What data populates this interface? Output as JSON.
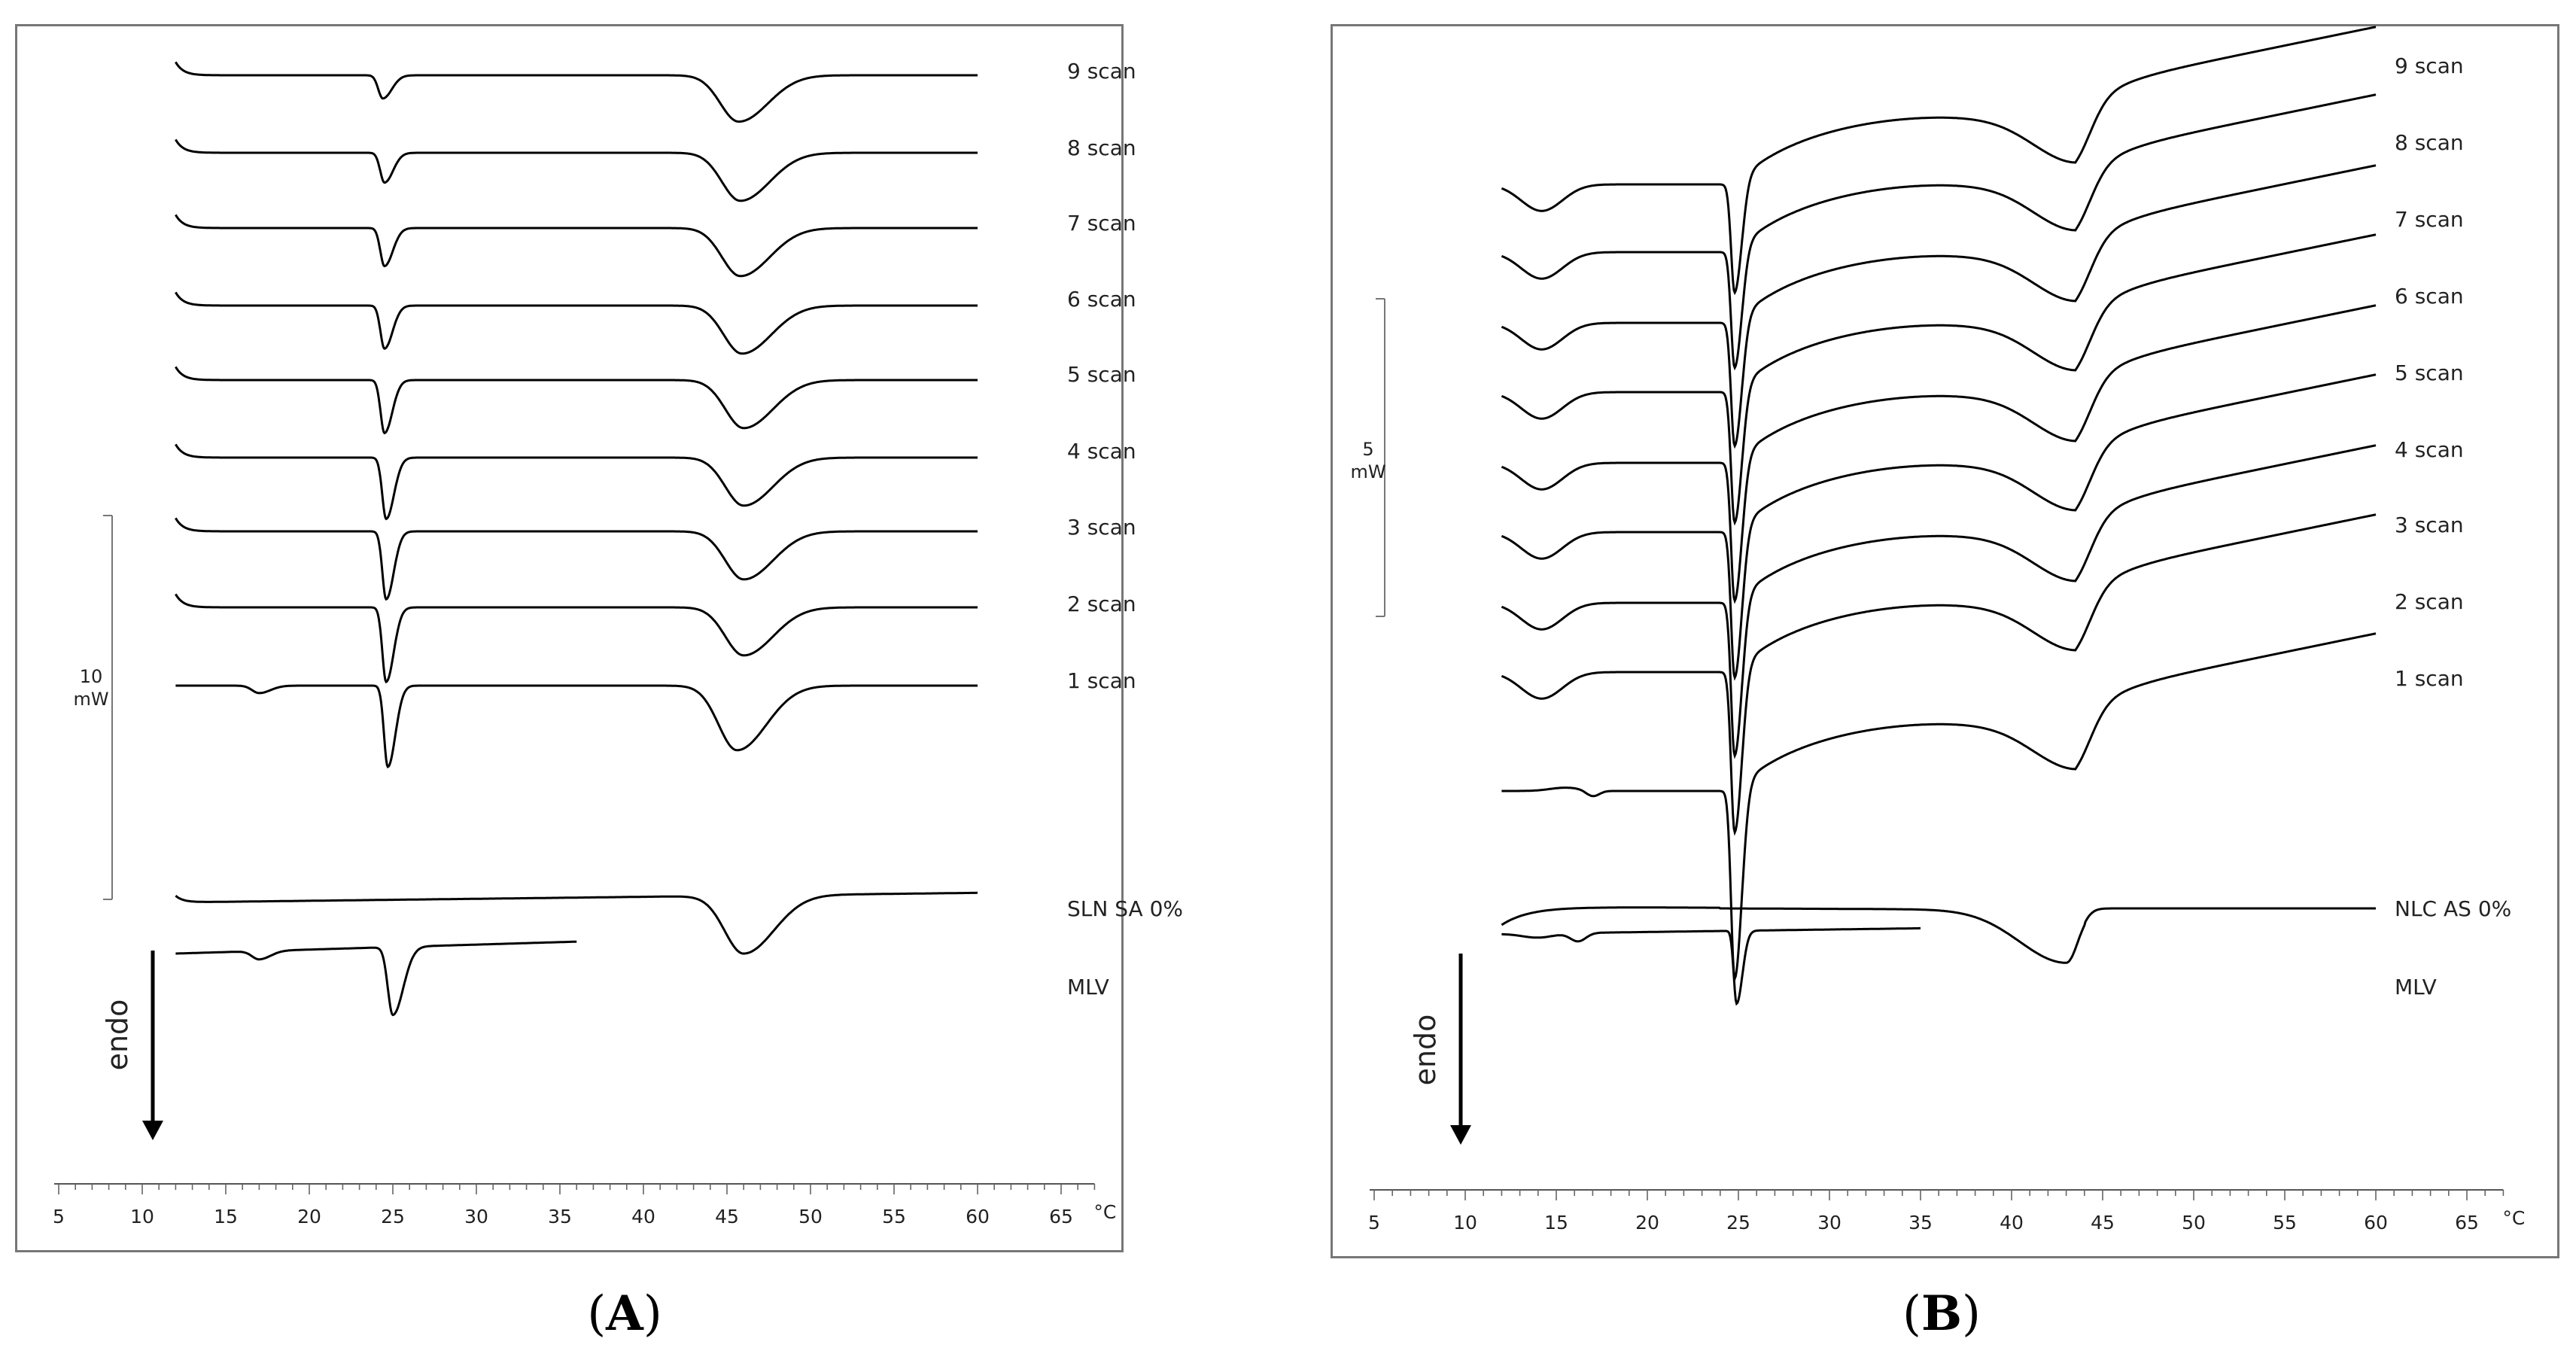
{
  "figure": {
    "panel_a_caption": {
      "open": "(",
      "letter": "A",
      "close": ")"
    },
    "panel_b_caption": {
      "open": "(",
      "letter": "B",
      "close": ")"
    }
  },
  "chart_data": [
    {
      "type": "line",
      "panel": "A",
      "x_axis": {
        "min": 5,
        "max": 67,
        "ticks": [
          5,
          10,
          15,
          20,
          25,
          30,
          35,
          40,
          45,
          50,
          55,
          60,
          65
        ],
        "tick_labels": [
          "5",
          "10",
          "15",
          "20",
          "25",
          "30",
          "35",
          "40",
          "45",
          "50",
          "55",
          "60",
          "65"
        ],
        "unit_label": "°C",
        "minor_step": 1
      },
      "y_axis_visible": false,
      "scale_bar": {
        "value_label": "10",
        "unit_label": "mW"
      },
      "direction_arrow_label": "endo",
      "series": [
        {
          "name": "9 scan",
          "x_start": 12,
          "x_end": 60,
          "baseline": 0,
          "dips": [
            {
              "x": 24.4,
              "depth": 1.4,
              "w": 0.38,
              "tail": 1.0
            },
            {
              "x": 45.7,
              "depth": 2.8,
              "w": 1.55,
              "tail": 0.6
            }
          ],
          "start_hook": 0.8
        },
        {
          "name": "8 scan",
          "x_start": 12,
          "x_end": 60,
          "baseline": 0,
          "dips": [
            {
              "x": 24.5,
              "depth": 1.8,
              "w": 0.36,
              "tail": 1.0
            },
            {
              "x": 45.8,
              "depth": 2.9,
              "w": 1.55,
              "tail": 0.6
            }
          ],
          "start_hook": 0.8
        },
        {
          "name": "7 scan",
          "x_start": 12,
          "x_end": 60,
          "baseline": 0,
          "dips": [
            {
              "x": 24.5,
              "depth": 2.3,
              "w": 0.35,
              "tail": 1.0
            },
            {
              "x": 45.8,
              "depth": 2.9,
              "w": 1.55,
              "tail": 0.6
            }
          ],
          "start_hook": 0.8
        },
        {
          "name": "6 scan",
          "x_start": 12,
          "x_end": 60,
          "baseline": 0,
          "dips": [
            {
              "x": 24.5,
              "depth": 2.6,
              "w": 0.34,
              "tail": 1.0
            },
            {
              "x": 45.9,
              "depth": 2.9,
              "w": 1.55,
              "tail": 0.6
            }
          ],
          "start_hook": 0.8
        },
        {
          "name": "5 scan",
          "x_start": 12,
          "x_end": 60,
          "baseline": 0,
          "dips": [
            {
              "x": 24.5,
              "depth": 3.2,
              "w": 0.33,
              "tail": 1.0
            },
            {
              "x": 46.0,
              "depth": 2.9,
              "w": 1.55,
              "tail": 0.6
            }
          ],
          "start_hook": 0.8
        },
        {
          "name": "4 scan",
          "x_start": 12,
          "x_end": 60,
          "baseline": 0,
          "dips": [
            {
              "x": 24.6,
              "depth": 3.7,
              "w": 0.33,
              "tail": 1.0
            },
            {
              "x": 46.0,
              "depth": 2.9,
              "w": 1.55,
              "tail": 0.6
            }
          ],
          "start_hook": 0.8
        },
        {
          "name": "3 scan",
          "x_start": 12,
          "x_end": 60,
          "baseline": 0,
          "dips": [
            {
              "x": 24.6,
              "depth": 4.1,
              "w": 0.32,
              "tail": 1.0
            },
            {
              "x": 46.0,
              "depth": 2.9,
              "w": 1.55,
              "tail": 0.6
            }
          ],
          "start_hook": 0.8
        },
        {
          "name": "2 scan",
          "x_start": 12,
          "x_end": 60,
          "baseline": 0,
          "dips": [
            {
              "x": 24.6,
              "depth": 4.5,
              "w": 0.32,
              "tail": 1.0
            },
            {
              "x": 46.0,
              "depth": 2.9,
              "w": 1.55,
              "tail": 0.6
            }
          ],
          "start_hook": 0.8
        },
        {
          "name": "1 scan",
          "x_start": 12,
          "x_end": 60,
          "baseline": 0,
          "dips": [
            {
              "x": 17.0,
              "depth": 0.45,
              "w": 0.6,
              "tail": 0.6
            },
            {
              "x": 24.7,
              "depth": 4.9,
              "w": 0.32,
              "tail": 1.0
            },
            {
              "x": 45.6,
              "depth": 3.9,
              "w": 1.55,
              "tail": 0.6
            }
          ],
          "start_hook": 0
        },
        {
          "name": "SLN SA 0%",
          "x_start": 12,
          "x_end": 60,
          "baseline": 0,
          "slope": -0.012,
          "dips": [
            {
              "x": 46.0,
              "depth": 3.5,
              "w": 1.6,
              "tail": 0.6
            }
          ],
          "start_hook": 0.4
        },
        {
          "name": "MLV",
          "x_start": 12,
          "x_end": 36,
          "baseline": 0,
          "slope": -0.03,
          "dips": [
            {
              "x": 17.0,
              "depth": 0.5,
              "w": 0.6,
              "tail": 0.6
            },
            {
              "x": 25.0,
              "depth": 4.1,
              "w": 0.42,
              "tail": 1.1
            }
          ],
          "start_hook": 0
        }
      ]
    },
    {
      "type": "line",
      "panel": "B",
      "x_axis": {
        "min": 5,
        "max": 67,
        "ticks": [
          5,
          10,
          15,
          20,
          25,
          30,
          35,
          40,
          45,
          50,
          55,
          60,
          65
        ],
        "tick_labels": [
          "5",
          "10",
          "15",
          "20",
          "25",
          "30",
          "35",
          "40",
          "45",
          "50",
          "55",
          "60",
          "65"
        ],
        "unit_label": "°C",
        "minor_step": 1
      },
      "y_axis_visible": false,
      "scale_bar": {
        "value_label": "5",
        "unit_label": "mW"
      },
      "direction_arrow_label": "endo",
      "series": [
        {
          "name": "9 scan",
          "x_start": 12,
          "x_end": 60
        },
        {
          "name": "8 scan",
          "x_start": 12,
          "x_end": 60
        },
        {
          "name": "7 scan",
          "x_start": 12,
          "x_end": 60
        },
        {
          "name": "6 scan",
          "x_start": 12,
          "x_end": 60
        },
        {
          "name": "5 scan",
          "x_start": 12,
          "x_end": 60
        },
        {
          "name": "4 scan",
          "x_start": 12,
          "x_end": 60
        },
        {
          "name": "3 scan",
          "x_start": 12,
          "x_end": 60
        },
        {
          "name": "2 scan",
          "x_start": 12,
          "x_end": 60
        },
        {
          "name": "1 scan",
          "x_start": 12,
          "x_end": 60
        },
        {
          "name": "NLC AS 0%",
          "x_start": 12,
          "x_end": 60
        },
        {
          "name": "MLV",
          "x_start": 12,
          "x_end": 35
        }
      ],
      "peaks": {
        "sharp_endotherm_x": 24.8,
        "broad_endotherm_x": 43.5
      }
    }
  ]
}
